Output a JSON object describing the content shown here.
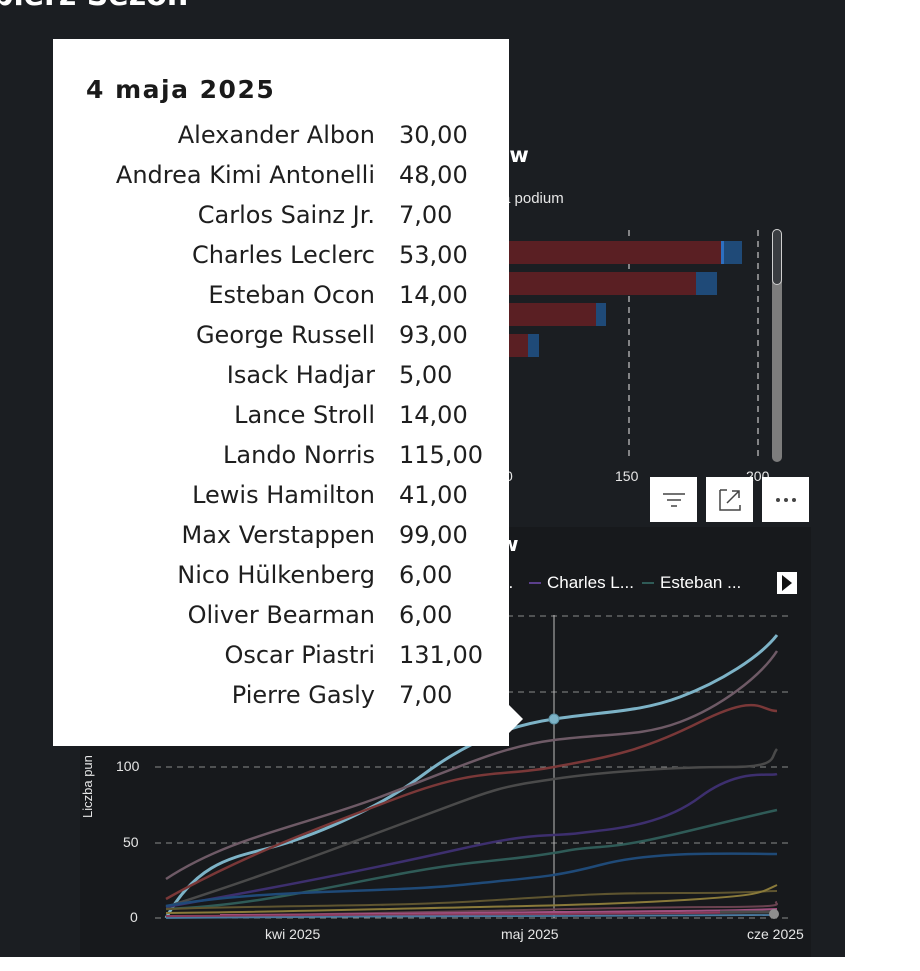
{
  "page": {
    "title": "bierz Sezon"
  },
  "bar_visual": {
    "title": "ów",
    "legend_fragment": "a podium",
    "x_ticks": [
      "0",
      "150",
      "200"
    ]
  },
  "visual_header": {
    "filter_icon": "filter-icon",
    "focus_icon": "focus-mode-icon",
    "more_icon": "more-options-icon"
  },
  "line_visual": {
    "title": "w",
    "legend": [
      {
        "label": "...",
        "color": "#7a7a7a"
      },
      {
        "label": "Charles L...",
        "color": "#5b3f8c"
      },
      {
        "label": "Esteban ...",
        "color": "#2f5b57"
      }
    ],
    "y_axis_title": "Liczba pun",
    "y_ticks": [
      "100",
      "50",
      "0"
    ],
    "x_ticks": [
      "kwi 2025",
      "maj 2025",
      "cze 2025"
    ]
  },
  "tooltip": {
    "date": "4 maja 2025",
    "rows": [
      {
        "name": "Alexander Albon",
        "value": "30,00"
      },
      {
        "name": "Andrea Kimi Antonelli",
        "value": "48,00"
      },
      {
        "name": "Carlos Sainz Jr.",
        "value": "7,00"
      },
      {
        "name": "Charles Leclerc",
        "value": "53,00"
      },
      {
        "name": "Esteban Ocon",
        "value": "14,00"
      },
      {
        "name": "George Russell",
        "value": "93,00"
      },
      {
        "name": "Isack Hadjar",
        "value": "5,00"
      },
      {
        "name": "Lance Stroll",
        "value": "14,00"
      },
      {
        "name": "Lando Norris",
        "value": "115,00"
      },
      {
        "name": "Lewis Hamilton",
        "value": "41,00"
      },
      {
        "name": "Max Verstappen",
        "value": "99,00"
      },
      {
        "name": "Nico Hülkenberg",
        "value": "6,00"
      },
      {
        "name": "Oliver Bearman",
        "value": "6,00"
      },
      {
        "name": "Oscar Piastri",
        "value": "131,00"
      },
      {
        "name": "Pierre Gasly",
        "value": "7,00"
      }
    ]
  },
  "colors": {
    "background": "#1b1e22",
    "bar_red": "#5a1f23",
    "bar_blue": "#1f4a78",
    "highlight_line": "#7db3c7"
  }
}
